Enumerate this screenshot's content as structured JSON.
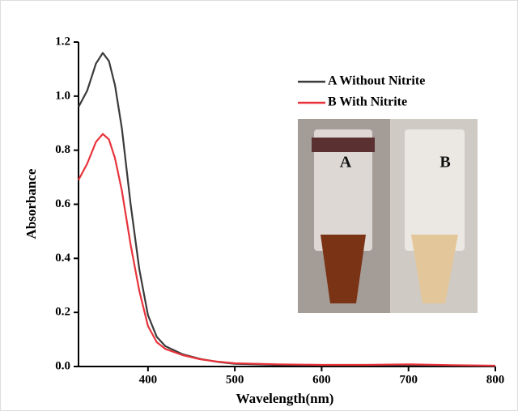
{
  "chart_data": {
    "type": "line",
    "x_label": "Wavelength(nm)",
    "y_label": "Absorbance",
    "x": [
      320,
      330,
      340,
      348,
      355,
      362,
      370,
      380,
      390,
      400,
      410,
      420,
      440,
      460,
      480,
      500,
      550,
      600,
      650,
      700,
      750,
      800
    ],
    "series": [
      {
        "name": "A Without Nitrite",
        "color": "#3a3a3a",
        "values": [
          0.96,
          1.02,
          1.12,
          1.16,
          1.13,
          1.04,
          0.88,
          0.6,
          0.36,
          0.19,
          0.11,
          0.075,
          0.045,
          0.028,
          0.017,
          0.01,
          0.006,
          0.005,
          0.005,
          0.005,
          0.004,
          0.002
        ]
      },
      {
        "name": "B With Nitrite",
        "color": "#e8333a",
        "values": [
          0.69,
          0.75,
          0.83,
          0.86,
          0.84,
          0.77,
          0.65,
          0.45,
          0.28,
          0.15,
          0.09,
          0.065,
          0.042,
          0.027,
          0.018,
          0.012,
          0.008,
          0.006,
          0.006,
          0.008,
          0.005,
          0.003
        ]
      }
    ],
    "xlim": [
      320,
      800
    ],
    "xticks": [
      400,
      500,
      600,
      700,
      800
    ],
    "ylim": [
      0,
      1.2
    ],
    "yticks": [
      {
        "value": 0,
        "label": "0.0"
      },
      0.2,
      0.4,
      0.6,
      0.8,
      {
        "value": 1,
        "label": "1.0"
      },
      1.2
    ],
    "annotations": [
      "A",
      "B"
    ],
    "legend": "upper-right",
    "grid": false
  }
}
